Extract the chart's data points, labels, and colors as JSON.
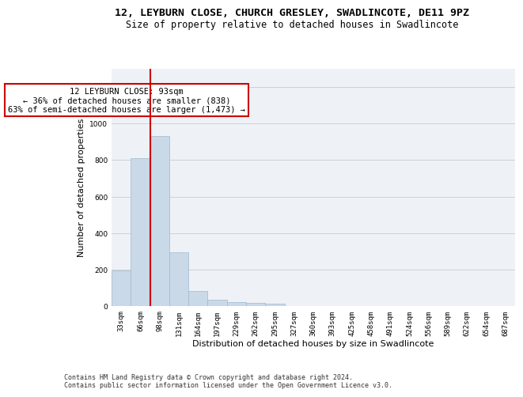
{
  "title_line1": "12, LEYBURN CLOSE, CHURCH GRESLEY, SWADLINCOTE, DE11 9PZ",
  "title_line2": "Size of property relative to detached houses in Swadlincote",
  "xlabel": "Distribution of detached houses by size in Swadlincote",
  "ylabel": "Number of detached properties",
  "categories": [
    "33sqm",
    "66sqm",
    "98sqm",
    "131sqm",
    "164sqm",
    "197sqm",
    "229sqm",
    "262sqm",
    "295sqm",
    "327sqm",
    "360sqm",
    "393sqm",
    "425sqm",
    "458sqm",
    "491sqm",
    "524sqm",
    "556sqm",
    "589sqm",
    "622sqm",
    "654sqm",
    "687sqm"
  ],
  "bar_heights": [
    193,
    810,
    930,
    293,
    83,
    35,
    20,
    18,
    12,
    0,
    0,
    0,
    0,
    0,
    0,
    0,
    0,
    0,
    0,
    0,
    0
  ],
  "bar_color": "#c9d9e8",
  "bar_edge_color": "#a0b8cc",
  "grid_color": "#d0d0d0",
  "annotation_text": "12 LEYBURN CLOSE: 93sqm\n← 36% of detached houses are smaller (838)\n63% of semi-detached houses are larger (1,473) →",
  "annotation_box_color": "#ffffff",
  "annotation_box_edge_color": "#cc0000",
  "vline_x": 1.5,
  "vline_color": "#cc0000",
  "ylim": [
    0,
    1300
  ],
  "yticks": [
    0,
    200,
    400,
    600,
    800,
    1000,
    1200
  ],
  "background_color": "#eef2f7",
  "footer_text": "Contains HM Land Registry data © Crown copyright and database right 2024.\nContains public sector information licensed under the Open Government Licence v3.0.",
  "title_fontsize": 9.5,
  "subtitle_fontsize": 8.5,
  "tick_fontsize": 6.5,
  "ylabel_fontsize": 8,
  "xlabel_fontsize": 8,
  "annotation_fontsize": 7.5,
  "footer_fontsize": 6
}
